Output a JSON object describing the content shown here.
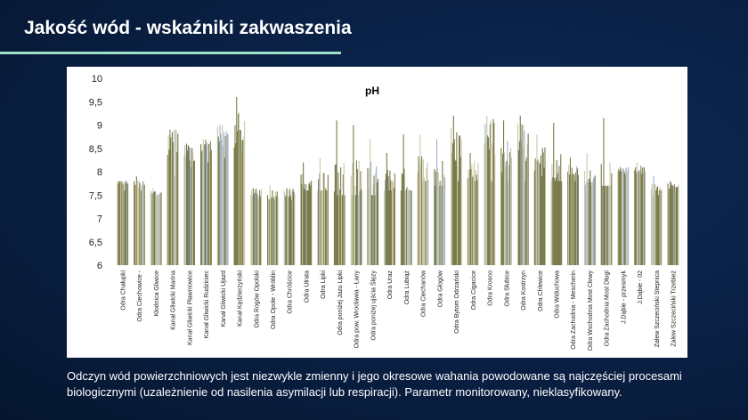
{
  "page": {
    "title": "Jakość wód - wskaźniki zakwaszenia",
    "caption": "Odczyn wód powierzchniowych jest niezwykle zmienny i jego okresowe wahania powodowane są najczęściej procesami biologicznymi (uzależnienie od nasilenia asymilacji lub respiracji). Parametr monitorowany, nieklasyfikowany.",
    "colors": {
      "background": "#0a2147",
      "accent_line": "#9ee0c8",
      "bar_main": "#7a7a4a",
      "bar_light": "#c9c9a8",
      "bar_blue": "#9fb3cf"
    }
  },
  "chart_data": {
    "type": "bar",
    "title": "pH",
    "ylim": [
      6,
      10
    ],
    "yticks": [
      "6",
      "6,5",
      "7",
      "7,5",
      "8",
      "8,5",
      "9",
      "9,5",
      "10"
    ],
    "grid": false,
    "legend": "none",
    "categories": [
      "Odra Chałupki",
      "Odra Ciechowice -",
      "Kłodnica Gliwice",
      "Kanał Gliwicki Marina",
      "Kanał Gliwicki Pławniowice",
      "Kanał Gliwicki Rudziniec",
      "Kanał Gliwicki Ujazd",
      "Kanał Kędzierzyński",
      "Odra Rogów Opolski",
      "Odra Opole - Wróblin",
      "Odra Chróścice",
      "Odra Ułrata",
      "Odra Lipki",
      "Odra poniżej Jazu Lipki",
      "Odra pow. Wrocławia - Łany",
      "Odra poniżej ujścia Ślęzy",
      "Odra Uraz",
      "Odra Lubiąż",
      "Odra Ciechanów",
      "Odra Głogów",
      "Odra Bytom Odrzański",
      "Odra Cigacice",
      "Odra Krosno",
      "Odra Słubice",
      "Odra Kostrzyn",
      "Odra Chlewice",
      "Odra Widuchowa",
      "Odra Zachodnia - Mescherin",
      "Odra Wschodnia Most Cłowy",
      "Odra Zachodnia Most Długi",
      "J.Dąbie - przesmyk",
      "J.Dąbie - 02",
      "Zalew Szczeciński Stepnica",
      "Zalew Szczeciński Trzebież"
    ],
    "series_ranges": [
      [
        7.6,
        7.8,
        7.8
      ],
      [
        7.6,
        7.9,
        7.75
      ],
      [
        7.5,
        7.65,
        7.55
      ],
      [
        7.9,
        8.9,
        8.6
      ],
      [
        8.1,
        8.6,
        8.4
      ],
      [
        8.2,
        8.7,
        8.55
      ],
      [
        8.3,
        9.0,
        8.8
      ],
      [
        8.4,
        9.6,
        8.9
      ],
      [
        7.4,
        7.65,
        7.55
      ],
      [
        7.4,
        7.7,
        7.5
      ],
      [
        7.4,
        7.65,
        7.55
      ],
      [
        7.6,
        8.2,
        7.75
      ],
      [
        7.6,
        8.3,
        7.75
      ],
      [
        7.5,
        9.1,
        7.7
      ],
      [
        7.5,
        9.0,
        7.8
      ],
      [
        7.5,
        8.7,
        7.8
      ],
      [
        7.6,
        8.4,
        7.8
      ],
      [
        7.6,
        8.8,
        7.75
      ],
      [
        7.8,
        8.8,
        8.0
      ],
      [
        7.7,
        8.7,
        7.9
      ],
      [
        7.8,
        9.2,
        8.5
      ],
      [
        7.8,
        8.4,
        8.0
      ],
      [
        7.8,
        9.2,
        8.7
      ],
      [
        7.8,
        9.1,
        8.4
      ],
      [
        7.8,
        9.2,
        8.7
      ],
      [
        7.9,
        8.8,
        8.3
      ],
      [
        7.8,
        9.05,
        8.0
      ],
      [
        7.8,
        8.3,
        8.0
      ],
      [
        7.7,
        8.4,
        7.9
      ],
      [
        7.7,
        9.15,
        7.7
      ],
      [
        7.95,
        8.1,
        8.05
      ],
      [
        7.95,
        8.2,
        8.05
      ],
      [
        7.5,
        7.9,
        7.6
      ],
      [
        7.6,
        7.8,
        7.7
      ]
    ]
  }
}
